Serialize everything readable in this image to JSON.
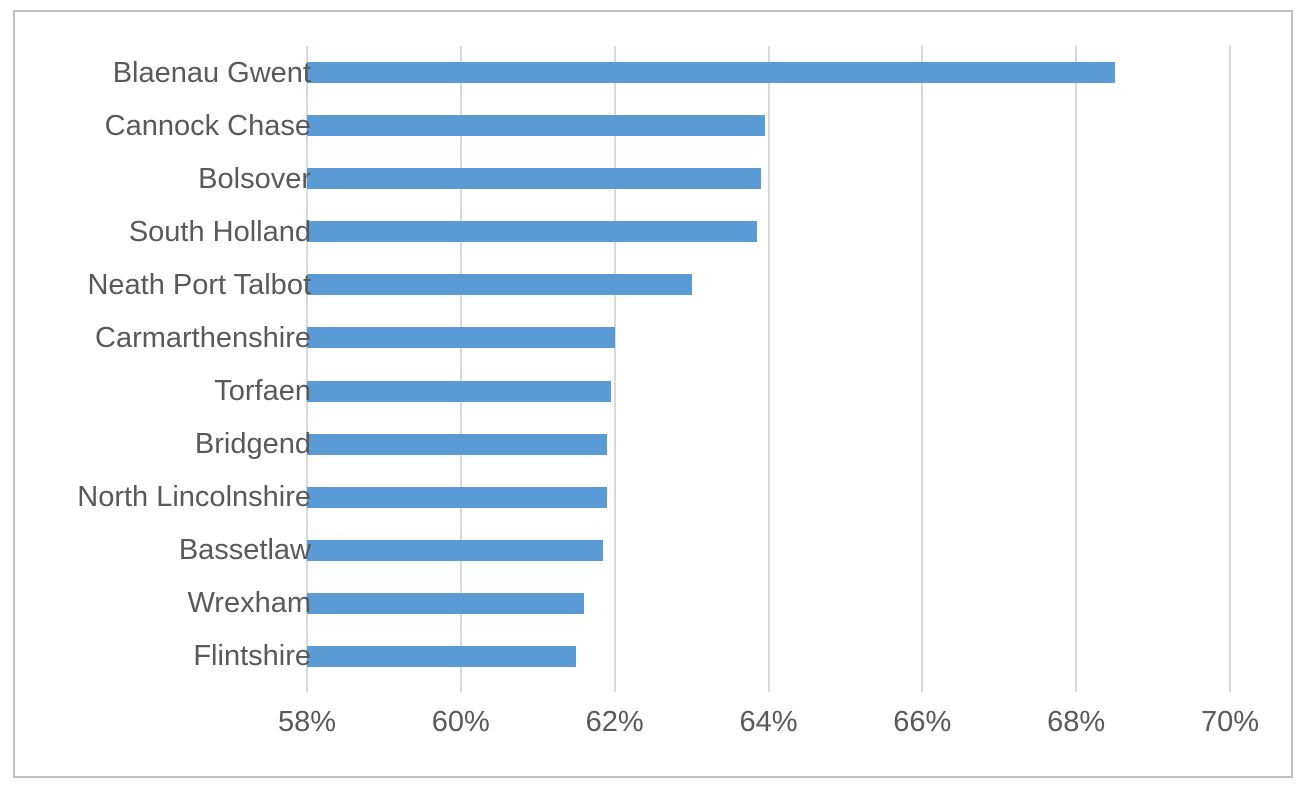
{
  "page": {
    "background": "#FFFFFF"
  },
  "chart_data": {
    "type": "bar",
    "orientation": "horizontal",
    "title": "",
    "xlabel": "",
    "ylabel": "",
    "categories": [
      "Blaenau Gwent",
      "Cannock Chase",
      "Bolsover",
      "South Holland",
      "Neath Port Talbot",
      "Carmarthenshire",
      "Torfaen",
      "Bridgend",
      "North Lincolnshire",
      "Bassetlaw",
      "Wrexham",
      "Flintshire"
    ],
    "values": [
      68.5,
      63.95,
      63.9,
      63.85,
      63.0,
      62.0,
      61.95,
      61.9,
      61.9,
      61.85,
      61.6,
      61.5
    ],
    "value_suffix": "%",
    "xlim": [
      58,
      70
    ],
    "x_ticks": [
      58,
      60,
      62,
      64,
      66,
      68,
      70
    ],
    "x_tick_labels": [
      "58%",
      "60%",
      "62%",
      "64%",
      "66%",
      "68%",
      "70%"
    ],
    "grid": true,
    "legend": false,
    "colors": {
      "bar": "#5B9BD5",
      "gridline": "#D9D9D9",
      "tick": "#D9D9D9",
      "axis_text": "#595959",
      "frame_border": "#BFBFBF",
      "background": "#FFFFFF"
    }
  }
}
